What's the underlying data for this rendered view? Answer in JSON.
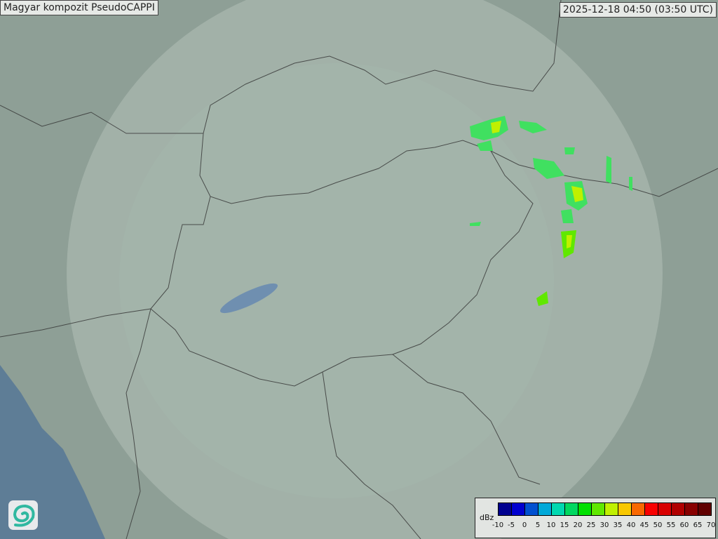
{
  "title": "Magyar kompozit  PseudoCAPPI",
  "timestamp": "2025-12-18 04:50 (03:50 UTC)",
  "legend": {
    "unit": "dBz",
    "ticks": [
      "-10",
      "-5",
      "0",
      "5",
      "10",
      "15",
      "20",
      "25",
      "30",
      "35",
      "40",
      "45",
      "50",
      "55",
      "60",
      "65",
      "70"
    ],
    "colors": [
      "#00008f",
      "#0000cf",
      "#0050d0",
      "#00a8d8",
      "#00d8b0",
      "#00d860",
      "#00e000",
      "#60e800",
      "#c0f000",
      "#f8c800",
      "#f86800",
      "#f80000",
      "#d80000",
      "#b00000",
      "#880000",
      "#600000"
    ]
  },
  "logo": "hungarian-met-service-swirl-logo",
  "colors": {
    "terrain": "#8e9f96",
    "radar_coverage": "#aebdb4",
    "sea": "#5e7d96",
    "echo_light": "#40e060",
    "echo_strong": "#c0f000"
  }
}
